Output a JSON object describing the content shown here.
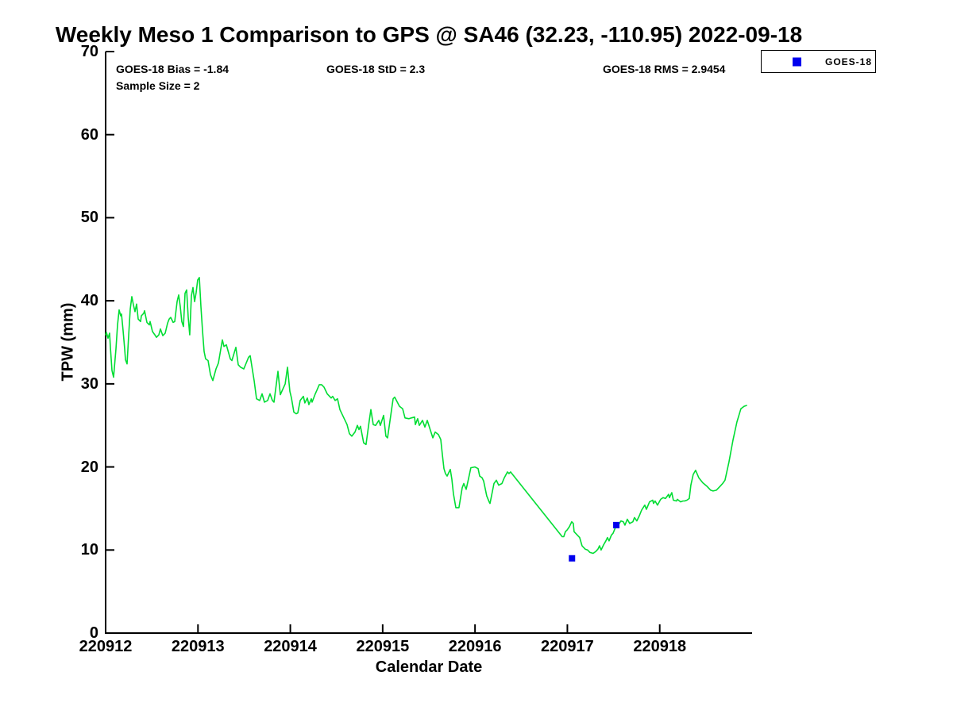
{
  "chart_data": {
    "type": "line",
    "title": "Weekly Meso 1 Comparison to GPS @ SA46 (32.23, -110.95) 2022-09-18",
    "xlabel": "Calendar Date",
    "ylabel": "TPW (mm)",
    "xlim": [
      0,
      7
    ],
    "ylim": [
      0,
      70
    ],
    "x_unit": "days since 220912",
    "grid": false,
    "annotations": {
      "bias": "GOES-18 Bias = -1.84",
      "std": "GOES-18 StD = 2.3",
      "rms": "GOES-18 RMS = 2.9454",
      "sample_size": "Sample Size = 2"
    },
    "x_axis": {
      "tick_positions": [
        0,
        1,
        2,
        3,
        4,
        5,
        6
      ],
      "tick_labels": [
        "220912",
        "220913",
        "220914",
        "220915",
        "220916",
        "220917",
        "220918"
      ]
    },
    "y_axis": {
      "ticks": [
        0,
        10,
        20,
        30,
        40,
        50,
        60,
        70
      ],
      "tick_labels": [
        "0",
        "10",
        "20",
        "30",
        "40",
        "50",
        "60",
        "70"
      ]
    },
    "colors": {
      "gps_line": "#00dd33",
      "goes_marker": "#0000ee",
      "axis": "#000000",
      "background": "#ffffff"
    },
    "legend": {
      "position": "top-right",
      "entries": [
        {
          "label": "GOES-18",
          "marker": "square",
          "color": "#0000ee"
        }
      ]
    },
    "series": [
      {
        "name": "GPS",
        "type": "line",
        "color": "#00dd33",
        "points": [
          [
            0.0,
            35.9
          ],
          [
            0.009,
            36.2
          ],
          [
            0.026,
            35.5
          ],
          [
            0.043,
            36.1
          ],
          [
            0.052,
            34.4
          ],
          [
            0.069,
            31.6
          ],
          [
            0.086,
            30.8
          ],
          [
            0.112,
            34.2
          ],
          [
            0.129,
            37.1
          ],
          [
            0.146,
            38.9
          ],
          [
            0.163,
            38.2
          ],
          [
            0.172,
            38.4
          ],
          [
            0.189,
            36.4
          ],
          [
            0.206,
            34.2
          ],
          [
            0.215,
            32.9
          ],
          [
            0.232,
            32.4
          ],
          [
            0.249,
            35.8
          ],
          [
            0.267,
            39.0
          ],
          [
            0.284,
            40.5
          ],
          [
            0.301,
            39.5
          ],
          [
            0.318,
            38.7
          ],
          [
            0.335,
            39.6
          ],
          [
            0.353,
            37.8
          ],
          [
            0.378,
            37.5
          ],
          [
            0.387,
            38.2
          ],
          [
            0.413,
            38.5
          ],
          [
            0.421,
            38.8
          ],
          [
            0.447,
            37.4
          ],
          [
            0.473,
            37.1
          ],
          [
            0.482,
            37.5
          ],
          [
            0.507,
            36.3
          ],
          [
            0.533,
            35.9
          ],
          [
            0.55,
            35.6
          ],
          [
            0.576,
            35.9
          ],
          [
            0.593,
            36.6
          ],
          [
            0.619,
            35.8
          ],
          [
            0.645,
            36.1
          ],
          [
            0.671,
            37.3
          ],
          [
            0.688,
            37.8
          ],
          [
            0.705,
            38.0
          ],
          [
            0.731,
            37.4
          ],
          [
            0.748,
            37.5
          ],
          [
            0.774,
            39.9
          ],
          [
            0.791,
            40.7
          ],
          [
            0.808,
            39.3
          ],
          [
            0.825,
            37.5
          ],
          [
            0.843,
            36.9
          ],
          [
            0.86,
            40.9
          ],
          [
            0.877,
            41.3
          ],
          [
            0.894,
            38.0
          ],
          [
            0.911,
            35.9
          ],
          [
            0.929,
            40.6
          ],
          [
            0.946,
            41.6
          ],
          [
            0.963,
            39.9
          ],
          [
            0.98,
            41.0
          ],
          [
            0.997,
            42.5
          ],
          [
            1.015,
            42.8
          ],
          [
            1.032,
            39.3
          ],
          [
            1.049,
            36.4
          ],
          [
            1.066,
            33.9
          ],
          [
            1.083,
            33.0
          ],
          [
            1.109,
            32.8
          ],
          [
            1.135,
            31.1
          ],
          [
            1.161,
            30.4
          ],
          [
            1.195,
            31.8
          ],
          [
            1.221,
            32.5
          ],
          [
            1.264,
            35.3
          ],
          [
            1.281,
            34.5
          ],
          [
            1.307,
            34.7
          ],
          [
            1.35,
            33.0
          ],
          [
            1.367,
            32.8
          ],
          [
            1.41,
            34.4
          ],
          [
            1.436,
            32.3
          ],
          [
            1.462,
            32.0
          ],
          [
            1.496,
            31.8
          ],
          [
            1.548,
            33.2
          ],
          [
            1.565,
            33.4
          ],
          [
            1.608,
            30.4
          ],
          [
            1.634,
            28.2
          ],
          [
            1.668,
            28.0
          ],
          [
            1.694,
            28.8
          ],
          [
            1.72,
            27.8
          ],
          [
            1.754,
            28.0
          ],
          [
            1.78,
            28.8
          ],
          [
            1.806,
            28.0
          ],
          [
            1.823,
            27.8
          ],
          [
            1.866,
            31.5
          ],
          [
            1.892,
            28.7
          ],
          [
            1.944,
            30.0
          ],
          [
            1.969,
            32.0
          ],
          [
            1.995,
            29.1
          ],
          [
            2.012,
            28.3
          ],
          [
            2.038,
            26.6
          ],
          [
            2.064,
            26.4
          ],
          [
            2.081,
            26.5
          ],
          [
            2.107,
            28.0
          ],
          [
            2.141,
            28.5
          ],
          [
            2.158,
            27.7
          ],
          [
            2.184,
            28.3
          ],
          [
            2.201,
            27.5
          ],
          [
            2.227,
            28.2
          ],
          [
            2.236,
            27.8
          ],
          [
            2.27,
            28.8
          ],
          [
            2.287,
            29.2
          ],
          [
            2.313,
            29.9
          ],
          [
            2.339,
            29.9
          ],
          [
            2.365,
            29.6
          ],
          [
            2.399,
            28.8
          ],
          [
            2.442,
            28.3
          ],
          [
            2.459,
            28.5
          ],
          [
            2.485,
            28.0
          ],
          [
            2.511,
            28.2
          ],
          [
            2.537,
            26.9
          ],
          [
            2.58,
            25.9
          ],
          [
            2.614,
            25.1
          ],
          [
            2.64,
            24.0
          ],
          [
            2.666,
            23.7
          ],
          [
            2.7,
            24.2
          ],
          [
            2.726,
            25.0
          ],
          [
            2.743,
            24.5
          ],
          [
            2.76,
            24.9
          ],
          [
            2.794,
            22.9
          ],
          [
            2.82,
            22.7
          ],
          [
            2.855,
            25.6
          ],
          [
            2.872,
            26.9
          ],
          [
            2.898,
            25.1
          ],
          [
            2.924,
            25.0
          ],
          [
            2.958,
            25.6
          ],
          [
            2.975,
            25.0
          ],
          [
            3.01,
            26.2
          ],
          [
            3.035,
            23.7
          ],
          [
            3.053,
            23.5
          ],
          [
            3.113,
            28.2
          ],
          [
            3.13,
            28.4
          ],
          [
            3.182,
            27.3
          ],
          [
            3.216,
            27.0
          ],
          [
            3.242,
            25.9
          ],
          [
            3.285,
            25.8
          ],
          [
            3.311,
            25.9
          ],
          [
            3.345,
            26.0
          ],
          [
            3.354,
            25.1
          ],
          [
            3.379,
            25.8
          ],
          [
            3.397,
            25.0
          ],
          [
            3.431,
            25.6
          ],
          [
            3.457,
            24.8
          ],
          [
            3.483,
            25.6
          ],
          [
            3.517,
            24.4
          ],
          [
            3.543,
            23.5
          ],
          [
            3.569,
            24.2
          ],
          [
            3.603,
            23.9
          ],
          [
            3.629,
            23.3
          ],
          [
            3.646,
            21.5
          ],
          [
            3.663,
            19.8
          ],
          [
            3.68,
            19.2
          ],
          [
            3.698,
            18.9
          ],
          [
            3.715,
            19.3
          ],
          [
            3.732,
            19.7
          ],
          [
            3.749,
            18.5
          ],
          [
            3.766,
            16.8
          ],
          [
            3.792,
            15.1
          ],
          [
            3.826,
            15.1
          ],
          [
            3.861,
            17.5
          ],
          [
            3.878,
            18.0
          ],
          [
            3.904,
            17.3
          ],
          [
            3.93,
            18.6
          ],
          [
            3.955,
            19.9
          ],
          [
            3.998,
            20.0
          ],
          [
            4.033,
            19.8
          ],
          [
            4.05,
            18.9
          ],
          [
            4.076,
            18.7
          ],
          [
            4.093,
            18.3
          ],
          [
            4.127,
            16.5
          ],
          [
            4.153,
            15.8
          ],
          [
            4.162,
            15.6
          ],
          [
            4.205,
            18.0
          ],
          [
            4.231,
            18.4
          ],
          [
            4.256,
            17.8
          ],
          [
            4.291,
            18.0
          ],
          [
            4.317,
            18.7
          ],
          [
            4.351,
            19.4
          ],
          [
            4.368,
            19.2
          ],
          [
            4.385,
            19.4
          ],
          [
            4.944,
            11.6
          ],
          [
            4.961,
            11.6
          ],
          [
            4.978,
            12.2
          ],
          [
            4.996,
            12.4
          ],
          [
            5.021,
            12.8
          ],
          [
            5.047,
            13.4
          ],
          [
            5.064,
            13.2
          ],
          [
            5.073,
            12.2
          ],
          [
            5.107,
            11.8
          ],
          [
            5.133,
            11.5
          ],
          [
            5.159,
            10.5
          ],
          [
            5.193,
            10.1
          ],
          [
            5.219,
            10.0
          ],
          [
            5.245,
            9.7
          ],
          [
            5.279,
            9.6
          ],
          [
            5.305,
            9.8
          ],
          [
            5.331,
            10.1
          ],
          [
            5.348,
            10.5
          ],
          [
            5.365,
            10.0
          ],
          [
            5.391,
            10.6
          ],
          [
            5.417,
            11.1
          ],
          [
            5.434,
            11.5
          ],
          [
            5.451,
            11.1
          ],
          [
            5.477,
            11.8
          ],
          [
            5.494,
            12.0
          ],
          [
            5.52,
            12.7
          ],
          [
            5.546,
            12.9
          ],
          [
            5.58,
            13.5
          ],
          [
            5.606,
            13.4
          ],
          [
            5.623,
            13.0
          ],
          [
            5.649,
            13.7
          ],
          [
            5.675,
            13.2
          ],
          [
            5.709,
            13.4
          ],
          [
            5.726,
            13.9
          ],
          [
            5.752,
            13.5
          ],
          [
            5.778,
            14.1
          ],
          [
            5.804,
            14.8
          ],
          [
            5.838,
            15.4
          ],
          [
            5.855,
            14.9
          ],
          [
            5.89,
            15.8
          ],
          [
            5.924,
            16.0
          ],
          [
            5.933,
            15.6
          ],
          [
            5.95,
            15.9
          ],
          [
            5.976,
            15.4
          ],
          [
            6.01,
            16.1
          ],
          [
            6.036,
            16.3
          ],
          [
            6.062,
            16.2
          ],
          [
            6.096,
            16.7
          ],
          [
            6.105,
            16.3
          ],
          [
            6.131,
            16.9
          ],
          [
            6.148,
            16.0
          ],
          [
            6.182,
            15.9
          ],
          [
            6.191,
            16.1
          ],
          [
            6.226,
            15.8
          ],
          [
            6.251,
            15.9
          ],
          [
            6.269,
            15.9
          ],
          [
            6.294,
            16.0
          ],
          [
            6.32,
            16.2
          ],
          [
            6.337,
            17.8
          ],
          [
            6.363,
            19.1
          ],
          [
            6.389,
            19.6
          ],
          [
            6.423,
            18.7
          ],
          [
            6.466,
            18.1
          ],
          [
            6.509,
            17.7
          ],
          [
            6.552,
            17.2
          ],
          [
            6.578,
            17.1
          ],
          [
            6.613,
            17.2
          ],
          [
            6.656,
            17.7
          ],
          [
            6.681,
            18.0
          ],
          [
            6.707,
            18.4
          ],
          [
            6.75,
            20.6
          ],
          [
            6.793,
            23.2
          ],
          [
            6.836,
            25.4
          ],
          [
            6.879,
            27.0
          ],
          [
            6.914,
            27.3
          ],
          [
            6.94,
            27.4
          ]
        ]
      },
      {
        "name": "GOES-18",
        "type": "scatter",
        "marker": "square",
        "color": "#0000ee",
        "points": [
          [
            5.05,
            9.0
          ],
          [
            5.53,
            13.0
          ]
        ]
      }
    ]
  }
}
